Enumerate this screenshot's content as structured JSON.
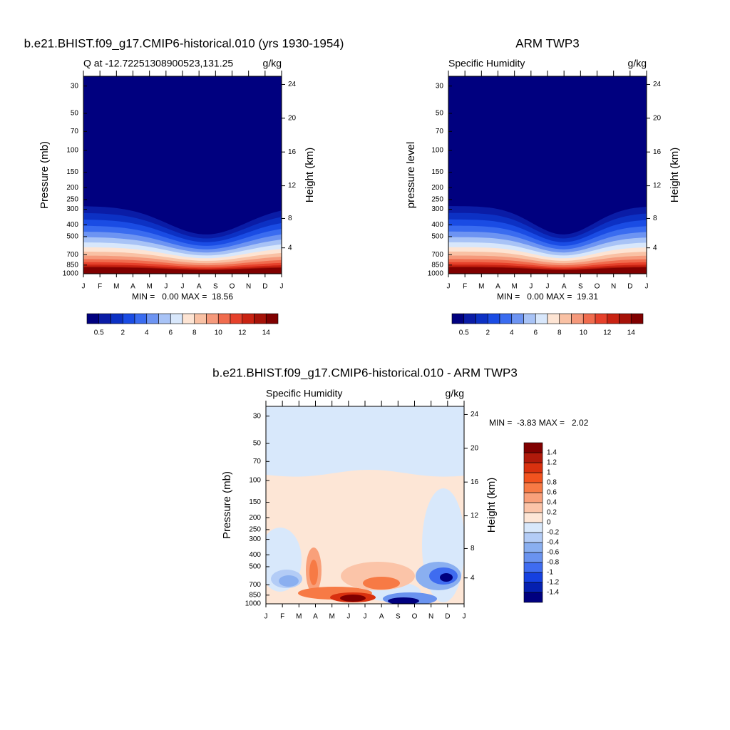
{
  "chart_data": [
    {
      "type": "contour",
      "title": "b.e21.BHIST.f09_g17.CMIP6-historical.010 (yrs 1930-1954)",
      "subtitle": "Q at -12.72251308900523,131.25",
      "units": "g/kg",
      "ylabel": "Pressure (mb)",
      "y2label": "Height (km)",
      "categories": [
        "J",
        "F",
        "M",
        "A",
        "M",
        "J",
        "J",
        "A",
        "S",
        "O",
        "N",
        "D",
        "J"
      ],
      "ylog": true,
      "ylim": [
        1000,
        25
      ],
      "yticks": [
        30,
        50,
        70,
        100,
        150,
        200,
        250,
        300,
        400,
        500,
        700,
        850,
        1000
      ],
      "y2ticks": [
        4,
        8,
        12,
        16,
        20,
        24
      ],
      "stats": "MIN =   0.00 MAX =  18.56",
      "colorbar": {
        "orientation": "horizontal",
        "ticks": [
          0.5,
          2,
          4,
          6,
          8,
          10,
          12,
          14
        ],
        "colors": [
          "#00007f",
          "#0a1ca6",
          "#0c31c4",
          "#1a4ce4",
          "#3a6cf0",
          "#6d94f2",
          "#a8c3f6",
          "#d8e7fb",
          "#fde4d3",
          "#f9c1a4",
          "#f5997b",
          "#f06c4e",
          "#e6412b",
          "#c92312",
          "#a61208",
          "#800000"
        ]
      }
    },
    {
      "type": "contour",
      "title": "ARM TWP3",
      "subtitle": "Specific Humidity",
      "units": "g/kg",
      "ylabel": "pressure level",
      "y2label": "Height (km)",
      "categories": [
        "J",
        "F",
        "M",
        "A",
        "M",
        "J",
        "J",
        "A",
        "S",
        "O",
        "N",
        "D",
        "J"
      ],
      "ylog": true,
      "ylim": [
        1000,
        25
      ],
      "yticks": [
        30,
        50,
        70,
        100,
        150,
        200,
        250,
        300,
        400,
        500,
        700,
        850,
        1000
      ],
      "y2ticks": [
        4,
        8,
        12,
        16,
        20,
        24
      ],
      "stats": "MIN =   0.00 MAX =  19.31",
      "colorbar": {
        "orientation": "horizontal",
        "ticks": [
          0.5,
          2,
          4,
          6,
          8,
          10,
          12,
          14
        ],
        "colors": [
          "#00007f",
          "#0a1ca6",
          "#0c31c4",
          "#1a4ce4",
          "#3a6cf0",
          "#6d94f2",
          "#a8c3f6",
          "#d8e7fb",
          "#fde4d3",
          "#f9c1a4",
          "#f5997b",
          "#f06c4e",
          "#e6412b",
          "#c92312",
          "#a61208",
          "#800000"
        ]
      }
    },
    {
      "type": "contour",
      "title": "b.e21.BHIST.f09_g17.CMIP6-historical.010 - ARM TWP3",
      "subtitle": "Specific Humidity",
      "units": "g/kg",
      "ylabel": "Pressure (mb)",
      "y2label": "Height (km)",
      "categories": [
        "J",
        "F",
        "M",
        "A",
        "M",
        "J",
        "J",
        "A",
        "S",
        "O",
        "N",
        "D",
        "J"
      ],
      "ylog": true,
      "ylim": [
        1000,
        25
      ],
      "yticks": [
        30,
        50,
        70,
        100,
        150,
        200,
        250,
        300,
        400,
        500,
        700,
        850,
        1000
      ],
      "y2ticks": [
        4,
        8,
        12,
        16,
        20,
        24
      ],
      "stats": "MIN =  -3.83 MAX =   2.02",
      "colorbar": {
        "orientation": "vertical",
        "ticks": [
          -1.4,
          -1.2,
          -1,
          -0.8,
          -0.6,
          -0.4,
          -0.2,
          0,
          0.2,
          0.4,
          0.6,
          0.8,
          1,
          1.2,
          1.4
        ],
        "colors": [
          "#00007f",
          "#0520b0",
          "#1540e0",
          "#3f6cf0",
          "#6a93ef",
          "#8aaff0",
          "#b3ccf6",
          "#d8e8fb",
          "#fde6d6",
          "#fbc4a8",
          "#f9a07a",
          "#f77a45",
          "#f2531f",
          "#d9310f",
          "#b01a0b",
          "#800000"
        ]
      }
    }
  ]
}
